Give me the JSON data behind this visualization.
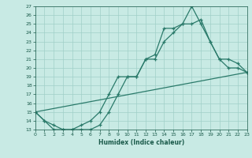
{
  "xlabel": "Humidex (Indice chaleur)",
  "xlim": [
    0,
    23
  ],
  "ylim": [
    13,
    27
  ],
  "xticks": [
    0,
    1,
    2,
    3,
    4,
    5,
    6,
    7,
    8,
    9,
    10,
    11,
    12,
    13,
    14,
    15,
    16,
    17,
    18,
    19,
    20,
    21,
    22,
    23
  ],
  "yticks": [
    13,
    14,
    15,
    16,
    17,
    18,
    19,
    20,
    21,
    22,
    23,
    24,
    25,
    26,
    27
  ],
  "bg_color": "#c8eae4",
  "grid_color": "#a0cfc8",
  "line_color": "#2a7a6a",
  "line1_x": [
    0,
    1,
    2,
    3,
    4,
    5,
    6,
    7,
    8,
    9,
    10,
    11,
    12,
    13,
    14,
    15,
    16,
    17,
    18,
    19,
    20,
    21,
    22,
    23
  ],
  "line1_y": [
    15,
    14,
    13,
    13,
    13,
    13,
    13,
    13.5,
    15,
    17,
    19,
    19,
    21,
    21.5,
    24.5,
    24.5,
    25,
    27,
    25,
    23,
    21,
    20,
    20,
    19.5
  ],
  "line2_x": [
    0,
    1,
    2,
    3,
    4,
    5,
    6,
    7,
    8,
    9,
    10,
    11,
    12,
    13,
    14,
    15,
    16,
    17,
    18,
    19,
    20,
    21,
    22,
    23
  ],
  "line2_y": [
    15,
    14,
    13.5,
    13,
    13,
    13.5,
    14,
    15,
    17,
    19,
    19,
    19,
    21,
    21,
    23,
    24,
    25,
    25,
    25.5,
    23,
    21,
    21,
    20.5,
    19.5
  ],
  "line3_x": [
    0,
    23
  ],
  "line3_y": [
    15,
    19.5
  ]
}
